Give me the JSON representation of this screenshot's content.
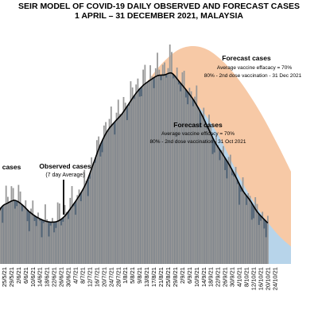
{
  "title": "SEIR MODEL OF COVID-19 DAILY OBSERVED AND FORECAST CASES",
  "subtitle": "1 APRIL – 31 DECEMBER 2021, MALAYSIA",
  "annotations": {
    "left_cut": "l cases",
    "observed_title": "Observed cases",
    "observed_sub": "(7 day Average)",
    "forecast_70_title": "Forecast cases",
    "forecast_70_line1": "Average vaccine  efficacy = 70%",
    "forecast_70_line2": "80% - 2nd dose vaccination - 31 Oct 2021",
    "forecast_top_title": "Forecast cases",
    "forecast_top_line1": "Average vaccine  effacacy = 70%",
    "forecast_top_line2": "80% - 2nd dose vaccination - 31 Dec 2021"
  },
  "colors": {
    "observed_bars": "#999999",
    "observed_area": "#5b6b7b",
    "forecast_oct_area": "#b7d4ea",
    "forecast_dec_area": "#f7c9a6",
    "seven_day_line": "#000000"
  },
  "chart_data": {
    "type": "area",
    "title": "SEIR MODEL OF COVID-19 DAILY OBSERVED AND FORECAST CASES",
    "subtitle": "1 APRIL – 31 DECEMBER 2021, MALAYSIA",
    "xlabel": "",
    "ylabel": "",
    "x_ticks": [
      "21/5/21",
      "25/5/21",
      "29/5/21",
      "2/6/21",
      "6/6/21",
      "10/6/21",
      "14/6/21",
      "18/6/21",
      "22/6/21",
      "26/6/21",
      "30/6/21",
      "4/7/21",
      "8/7/21",
      "12/7/21",
      "16/7/21",
      "20/7/21",
      "24/7/21",
      "28/7/21",
      "1/8/21",
      "5/8/21",
      "9/8/21",
      "13/8/21",
      "17/8/21",
      "21/8/21",
      "25/8/21",
      "29/8/21",
      "2/9/21",
      "6/9/21",
      "10/9/21",
      "14/9/21",
      "18/9/21",
      "22/9/21",
      "26/9/21",
      "30/9/21",
      "4/10/21",
      "8/10/21",
      "12/10/21",
      "16/10/21",
      "20/10/21",
      "24/10/21"
    ],
    "x_range": [
      "2021-05-19",
      "2021-11-02"
    ],
    "ylim": [
      0,
      25000
    ],
    "grid": false,
    "legend": "none",
    "series": [
      {
        "name": "Observed cases",
        "kind": "bars",
        "x": [
          "2021-05-19",
          "2021-05-23",
          "2021-05-27",
          "2021-05-31",
          "2021-06-04",
          "2021-06-08",
          "2021-06-12",
          "2021-06-16",
          "2021-06-20",
          "2021-06-24",
          "2021-06-28",
          "2021-07-02",
          "2021-07-06",
          "2021-07-10",
          "2021-07-14",
          "2021-07-18",
          "2021-07-22",
          "2021-07-26",
          "2021-07-30",
          "2021-08-03",
          "2021-08-07",
          "2021-08-11",
          "2021-08-15",
          "2021-08-19",
          "2021-08-23",
          "2021-08-27",
          "2021-08-31",
          "2021-09-04",
          "2021-09-08",
          "2021-09-12",
          "2021-09-16",
          "2021-09-20",
          "2021-09-24",
          "2021-09-28",
          "2021-10-02",
          "2021-10-06",
          "2021-10-10",
          "2021-10-14",
          "2021-10-18",
          "2021-10-20"
        ],
        "values": [
          4800,
          6700,
          7600,
          8200,
          6900,
          5600,
          5200,
          4800,
          4400,
          5300,
          6000,
          6900,
          7900,
          9100,
          11800,
          13900,
          16000,
          17000,
          17600,
          18900,
          20200,
          21000,
          21900,
          22100,
          22700,
          23300,
          21200,
          20100,
          19200,
          17700,
          16000,
          14000,
          12300,
          11600,
          9800,
          8100,
          7200,
          5600,
          4900,
          4600
        ]
      },
      {
        "name": "Observed cases (7 day Average)",
        "kind": "line",
        "x": [
          "2021-05-19",
          "2021-05-23",
          "2021-05-27",
          "2021-05-31",
          "2021-06-04",
          "2021-06-08",
          "2021-06-12",
          "2021-06-16",
          "2021-06-20",
          "2021-06-24",
          "2021-06-28",
          "2021-07-02",
          "2021-07-06",
          "2021-07-10",
          "2021-07-14",
          "2021-07-18",
          "2021-07-22",
          "2021-07-26",
          "2021-07-30",
          "2021-08-03",
          "2021-08-07",
          "2021-08-11",
          "2021-08-15",
          "2021-08-19",
          "2021-08-23",
          "2021-08-27",
          "2021-08-31",
          "2021-09-04",
          "2021-09-08",
          "2021-09-12",
          "2021-09-16",
          "2021-09-20",
          "2021-09-24",
          "2021-09-28",
          "2021-10-02",
          "2021-10-06",
          "2021-10-10",
          "2021-10-14",
          "2021-10-18",
          "2021-10-20"
        ],
        "values": [
          4400,
          6400,
          7000,
          7300,
          6800,
          6000,
          5400,
          5000,
          4800,
          4900,
          5500,
          6600,
          7800,
          9300,
          11500,
          13700,
          15300,
          16300,
          17200,
          18400,
          19600,
          20500,
          21100,
          21600,
          21700,
          21900,
          21000,
          20000,
          18900,
          17500,
          15800,
          14100,
          12800,
          11500,
          10000,
          8400,
          7300,
          6000,
          5100,
          4700
        ]
      },
      {
        "name": "Forecast cases (80% - 2nd dose vaccination - 31 Oct 2021)",
        "kind": "area",
        "x": [
          "2021-07-30",
          "2021-08-07",
          "2021-08-15",
          "2021-08-23",
          "2021-08-31",
          "2021-09-08",
          "2021-09-16",
          "2021-09-24",
          "2021-10-02",
          "2021-10-10",
          "2021-10-18",
          "2021-10-26",
          "2021-11-02"
        ],
        "values": [
          17200,
          19000,
          20000,
          20500,
          20200,
          18800,
          16800,
          14100,
          10800,
          7800,
          5300,
          3300,
          2000
        ]
      },
      {
        "name": "Forecast cases (80% - 2nd dose vaccination - 31 Dec 2021)",
        "kind": "area",
        "x": [
          "2021-08-07",
          "2021-08-15",
          "2021-08-23",
          "2021-08-31",
          "2021-09-08",
          "2021-09-16",
          "2021-09-24",
          "2021-10-02",
          "2021-10-10",
          "2021-10-18",
          "2021-10-26",
          "2021-11-02"
        ],
        "values": [
          19200,
          21400,
          23300,
          24600,
          25000,
          24600,
          23400,
          21600,
          19300,
          16600,
          13500,
          10600
        ]
      }
    ]
  }
}
